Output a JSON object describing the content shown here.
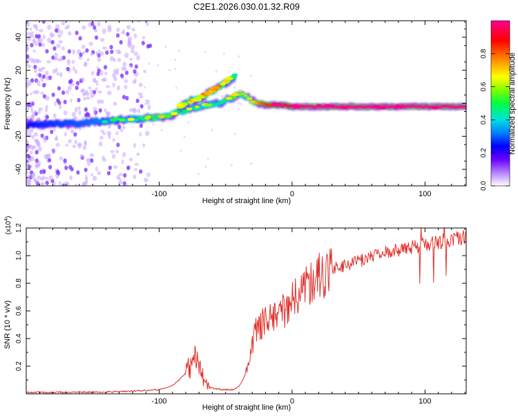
{
  "title": "C2E1.2026.030.01.32.R09",
  "chart_data": [
    {
      "type": "heatmap",
      "name": "spectrogram",
      "xlabel": "Height of straight line (km)",
      "ylabel": "Frequency (Hz)",
      "xlim": [
        -200,
        131
      ],
      "ylim": [
        -50,
        50
      ],
      "x_ticks": [
        -100,
        0,
        100
      ],
      "y_ticks": [
        -40,
        -20,
        0,
        20,
        40
      ],
      "colorbar": {
        "label": "Normalized spectral amplitude",
        "range": [
          0.0,
          1.0
        ],
        "ticks": [
          0.0,
          0.2,
          0.4,
          0.6,
          0.8
        ],
        "tick_labels": [
          "0.0",
          "0.2",
          "0.4",
          "0.6",
          "0.8"
        ]
      },
      "ridge": {
        "x": [
          -200,
          -160,
          -130,
          -110,
          -95,
          -85,
          -75,
          -65,
          -55,
          -50,
          -45,
          -40,
          -35,
          -30,
          -25,
          -20,
          -15,
          -10,
          0,
          10,
          20,
          40,
          60,
          80,
          100,
          120,
          131
        ],
        "freq_hz": [
          -13,
          -12,
          -10,
          -9,
          -8,
          -5,
          -3,
          -1,
          0,
          2,
          4,
          6,
          4,
          1,
          0,
          -1,
          -1,
          -1,
          -2,
          -2,
          -2,
          -2,
          -2,
          -2,
          -2,
          -2,
          -2
        ],
        "amplitude": [
          0.25,
          0.3,
          0.35,
          0.5,
          0.55,
          0.5,
          0.45,
          0.4,
          0.45,
          0.5,
          0.55,
          0.6,
          0.6,
          0.7,
          0.8,
          0.85,
          0.85,
          0.9,
          0.95,
          1.0,
          1.0,
          1.0,
          1.0,
          1.0,
          1.0,
          1.0,
          1.0
        ]
      },
      "branch": {
        "x": [
          -85,
          -78,
          -70,
          -62,
          -55,
          -48,
          -43
        ],
        "freq_hz": [
          -2,
          1,
          3,
          7,
          10,
          14,
          17
        ],
        "amplitude": [
          0.45,
          0.5,
          0.5,
          0.55,
          0.55,
          0.45,
          0.3
        ]
      }
    },
    {
      "type": "line",
      "name": "snr",
      "xlabel": "Height of straight line (km)",
      "ylabel": "SNR (10 * v/v)",
      "y_scale_label": "(x10",
      "y_scale_exponent": "4",
      "xlim": [
        -200,
        131
      ],
      "ylim": [
        0,
        1.2
      ],
      "x_ticks": [
        -100,
        0,
        100
      ],
      "y_ticks": [
        0.2,
        0.4,
        0.6,
        0.8,
        1.0,
        1.2
      ],
      "series": [
        {
          "name": "SNR",
          "color": "#e0302a",
          "x": [
            -200,
            -180,
            -160,
            -140,
            -130,
            -120,
            -110,
            -100,
            -95,
            -90,
            -85,
            -80,
            -76,
            -72,
            -70,
            -68,
            -65,
            -62,
            -60,
            -56,
            -52,
            -48,
            -44,
            -40,
            -36,
            -32,
            -30,
            -28,
            -24,
            -20,
            -16,
            -12,
            -8,
            -4,
            0,
            4,
            8,
            12,
            16,
            20,
            25,
            30,
            40,
            50,
            60,
            70,
            80,
            90,
            100,
            110,
            120,
            131
          ],
          "values": [
            0.01,
            0.01,
            0.012,
            0.013,
            0.015,
            0.02,
            0.025,
            0.03,
            0.04,
            0.06,
            0.1,
            0.15,
            0.22,
            0.3,
            0.22,
            0.14,
            0.08,
            0.05,
            0.04,
            0.035,
            0.03,
            0.03,
            0.03,
            0.05,
            0.12,
            0.25,
            0.35,
            0.45,
            0.5,
            0.52,
            0.55,
            0.58,
            0.6,
            0.62,
            0.68,
            0.72,
            0.76,
            0.8,
            0.82,
            0.85,
            0.87,
            0.9,
            0.93,
            0.96,
            0.99,
            1.02,
            1.04,
            1.06,
            1.08,
            1.1,
            1.12,
            1.13
          ]
        }
      ]
    }
  ]
}
